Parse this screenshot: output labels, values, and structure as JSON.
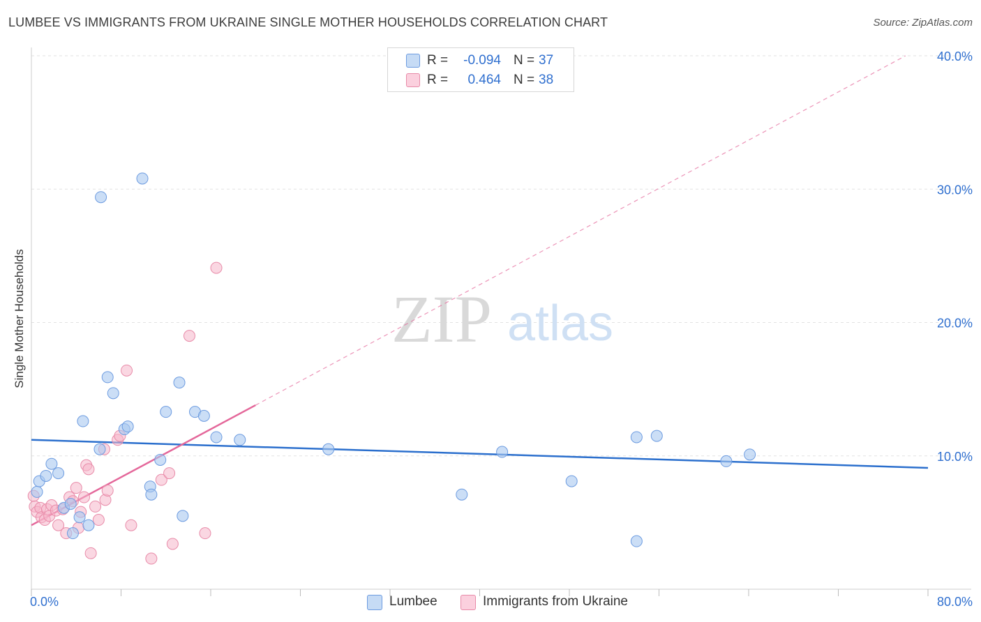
{
  "header": {
    "title": "LUMBEE VS IMMIGRANTS FROM UKRAINE SINGLE MOTHER HOUSEHOLDS CORRELATION CHART",
    "source": "Source: ZipAtlas.com"
  },
  "watermark": {
    "zip": "ZIP",
    "atlas": "atlas"
  },
  "legend_top": {
    "rows": [
      {
        "r_label": "R =",
        "r_value": "-0.094",
        "n_label": "N =",
        "n_value": "37",
        "color": "#a9c8f0"
      },
      {
        "r_label": "R =",
        "r_value": "0.464",
        "n_label": "N =",
        "n_value": "38",
        "color": "#f6b6cb"
      }
    ]
  },
  "legend_bottom": {
    "items": [
      {
        "label": "Lumbee",
        "color": "#a9c8f0"
      },
      {
        "label": "Immigrants from Ukraine",
        "color": "#f6b6cb"
      }
    ]
  },
  "colors": {
    "blue_point_fill": "#a9c8f0",
    "blue_point_stroke": "#6c9be0",
    "blue_line": "#2b6fcd",
    "pink_point_fill": "#f6b6cb",
    "pink_point_stroke": "#e88aa8",
    "pink_line": "#e4679a",
    "tick_label": "#2f6fcf",
    "grid": "#e2e2e2"
  },
  "chart_data": {
    "type": "scatter",
    "title": "LUMBEE VS IMMIGRANTS FROM UKRAINE SINGLE MOTHER HOUSEHOLDS CORRELATION CHART",
    "xlabel": "",
    "ylabel": "Single Mother Households",
    "xlim": [
      0,
      80
    ],
    "ylim": [
      0,
      40
    ],
    "x_tick_labels": [
      "0.0%",
      "80.0%"
    ],
    "y_ticks": [
      10,
      20,
      30,
      40
    ],
    "y_tick_labels": [
      "10.0%",
      "20.0%",
      "30.0%",
      "40.0%"
    ],
    "grid": true,
    "legend_position": "top-center",
    "series": [
      {
        "name": "Lumbee",
        "points": [
          [
            0.5,
            7.3
          ],
          [
            0.7,
            8.1
          ],
          [
            1.3,
            8.5
          ],
          [
            1.8,
            9.4
          ],
          [
            2.4,
            8.7
          ],
          [
            2.9,
            6.1
          ],
          [
            3.5,
            6.4
          ],
          [
            3.7,
            4.2
          ],
          [
            4.3,
            5.4
          ],
          [
            4.6,
            12.6
          ],
          [
            5.1,
            4.8
          ],
          [
            6.1,
            10.5
          ],
          [
            6.2,
            29.4
          ],
          [
            6.8,
            15.9
          ],
          [
            7.3,
            14.7
          ],
          [
            8.3,
            12.0
          ],
          [
            8.6,
            12.2
          ],
          [
            9.9,
            30.8
          ],
          [
            10.6,
            7.7
          ],
          [
            10.7,
            7.1
          ],
          [
            11.5,
            9.7
          ],
          [
            12.0,
            13.3
          ],
          [
            13.2,
            15.5
          ],
          [
            13.5,
            5.5
          ],
          [
            14.6,
            13.3
          ],
          [
            15.4,
            13.0
          ],
          [
            16.5,
            11.4
          ],
          [
            18.6,
            11.2
          ],
          [
            26.5,
            10.5
          ],
          [
            38.4,
            7.1
          ],
          [
            42.0,
            10.3
          ],
          [
            48.2,
            8.1
          ],
          [
            54.0,
            11.4
          ],
          [
            54.0,
            3.6
          ],
          [
            55.8,
            11.5
          ],
          [
            62.0,
            9.6
          ],
          [
            64.1,
            10.1
          ]
        ],
        "trendline": {
          "x": [
            0,
            80
          ],
          "y": [
            11.2,
            9.1
          ]
        }
      },
      {
        "name": "Immigrants from Ukraine",
        "points": [
          [
            0.2,
            7.0
          ],
          [
            0.3,
            6.2
          ],
          [
            0.5,
            5.8
          ],
          [
            0.8,
            6.1
          ],
          [
            0.9,
            5.4
          ],
          [
            1.2,
            5.2
          ],
          [
            1.4,
            6.0
          ],
          [
            1.6,
            5.5
          ],
          [
            1.8,
            6.3
          ],
          [
            2.2,
            5.9
          ],
          [
            2.4,
            4.8
          ],
          [
            2.8,
            6.0
          ],
          [
            3.1,
            4.2
          ],
          [
            3.4,
            6.9
          ],
          [
            3.7,
            6.6
          ],
          [
            4.0,
            7.6
          ],
          [
            4.2,
            4.6
          ],
          [
            4.4,
            5.8
          ],
          [
            4.7,
            6.9
          ],
          [
            4.9,
            9.3
          ],
          [
            5.1,
            9.0
          ],
          [
            5.3,
            2.7
          ],
          [
            5.7,
            6.2
          ],
          [
            6.0,
            5.2
          ],
          [
            6.5,
            10.5
          ],
          [
            6.6,
            6.7
          ],
          [
            6.8,
            7.4
          ],
          [
            7.7,
            11.2
          ],
          [
            7.9,
            11.5
          ],
          [
            8.5,
            16.4
          ],
          [
            8.9,
            4.8
          ],
          [
            10.7,
            2.3
          ],
          [
            11.6,
            8.2
          ],
          [
            12.3,
            8.7
          ],
          [
            12.6,
            3.4
          ],
          [
            14.1,
            19.0
          ],
          [
            15.5,
            4.2
          ],
          [
            16.5,
            24.1
          ]
        ],
        "trendline": {
          "x": [
            0,
            20
          ],
          "y": [
            4.8,
            13.8
          ],
          "extended_x": [
            20,
            78
          ],
          "extended_y": [
            13.8,
            40.0
          ]
        }
      }
    ]
  }
}
